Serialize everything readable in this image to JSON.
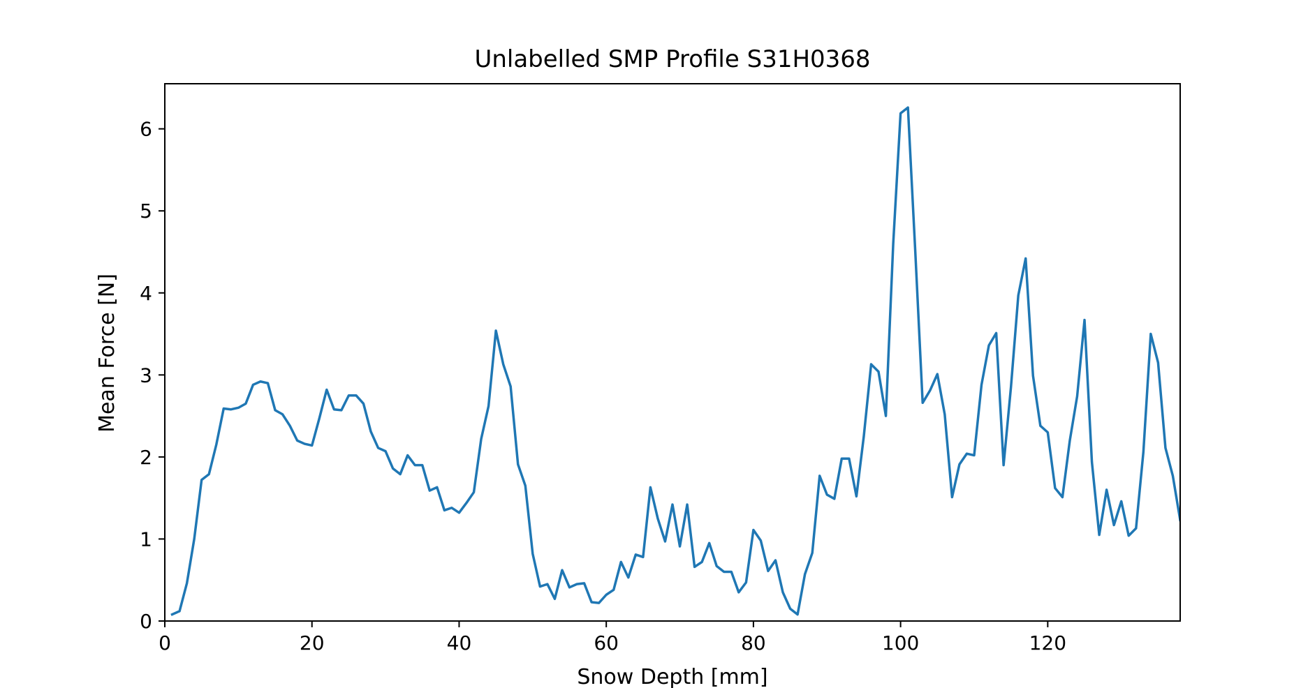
{
  "chart_data": {
    "type": "line",
    "title": "Unlabelled SMP Profile S31H0368",
    "xlabel": "Snow Depth [mm]",
    "ylabel": "Mean Force [N]",
    "xlim": [
      0,
      138
    ],
    "ylim": [
      0,
      6.55
    ],
    "xticks": [
      0,
      20,
      40,
      60,
      80,
      100,
      120
    ],
    "yticks": [
      0,
      1,
      2,
      3,
      4,
      5,
      6
    ],
    "grid": false,
    "legend": "none",
    "series": [
      {
        "color": "#1f77b4",
        "x": [
          1,
          2,
          3,
          4,
          5,
          6,
          7,
          8,
          9,
          10,
          11,
          12,
          13,
          14,
          15,
          16,
          17,
          18,
          19,
          20,
          21,
          22,
          23,
          24,
          25,
          26,
          27,
          28,
          29,
          30,
          31,
          32,
          33,
          34,
          35,
          36,
          37,
          38,
          39,
          40,
          41,
          42,
          43,
          44,
          45,
          46,
          47,
          48,
          49,
          50,
          51,
          52,
          53,
          54,
          55,
          56,
          57,
          58,
          59,
          60,
          61,
          62,
          63,
          64,
          65,
          66,
          67,
          68,
          69,
          70,
          71,
          72,
          73,
          74,
          75,
          76,
          77,
          78,
          79,
          80,
          81,
          82,
          83,
          84,
          85,
          86,
          87,
          88,
          89,
          90,
          91,
          92,
          93,
          94,
          95,
          96,
          97,
          98,
          99,
          100,
          101,
          102,
          103,
          104,
          105,
          106,
          107,
          108,
          109,
          110,
          111,
          112,
          113,
          114,
          115,
          116,
          117,
          118,
          119,
          120,
          121,
          122,
          123,
          124,
          125,
          126,
          127,
          128,
          129,
          130,
          131,
          132,
          133,
          134,
          135,
          136,
          137,
          138
        ],
        "y": [
          0.08,
          0.12,
          0.46,
          1.0,
          1.72,
          1.79,
          2.15,
          2.59,
          2.58,
          2.6,
          2.65,
          2.88,
          2.92,
          2.9,
          2.57,
          2.52,
          2.38,
          2.2,
          2.16,
          2.14,
          2.47,
          2.82,
          2.58,
          2.57,
          2.75,
          2.75,
          2.65,
          2.31,
          2.11,
          2.07,
          1.86,
          1.79,
          2.02,
          1.9,
          1.9,
          1.59,
          1.63,
          1.35,
          1.38,
          1.32,
          1.44,
          1.57,
          2.22,
          2.62,
          3.54,
          3.13,
          2.86,
          1.91,
          1.65,
          0.82,
          0.42,
          0.45,
          0.27,
          0.62,
          0.41,
          0.45,
          0.46,
          0.23,
          0.22,
          0.32,
          0.38,
          0.72,
          0.53,
          0.81,
          0.78,
          1.63,
          1.25,
          0.97,
          1.42,
          0.91,
          1.42,
          0.66,
          0.72,
          0.95,
          0.67,
          0.6,
          0.6,
          0.35,
          0.47,
          1.11,
          0.98,
          0.61,
          0.74,
          0.35,
          0.15,
          0.08,
          0.57,
          0.83,
          1.77,
          1.54,
          1.49,
          1.98,
          1.98,
          1.52,
          2.25,
          3.13,
          3.04,
          2.5,
          4.6,
          6.19,
          6.26,
          4.5,
          2.66,
          2.81,
          3.01,
          2.52,
          1.51,
          1.91,
          2.04,
          2.02,
          2.88,
          3.36,
          3.51,
          1.9,
          2.85,
          3.97,
          4.42,
          2.99,
          2.38,
          2.3,
          1.62,
          1.51,
          2.2,
          2.74,
          3.67,
          1.94,
          1.05,
          1.6,
          1.17,
          1.46,
          1.04,
          1.13,
          2.06,
          3.5,
          3.15,
          2.11,
          1.77,
          1.23
        ]
      }
    ]
  }
}
